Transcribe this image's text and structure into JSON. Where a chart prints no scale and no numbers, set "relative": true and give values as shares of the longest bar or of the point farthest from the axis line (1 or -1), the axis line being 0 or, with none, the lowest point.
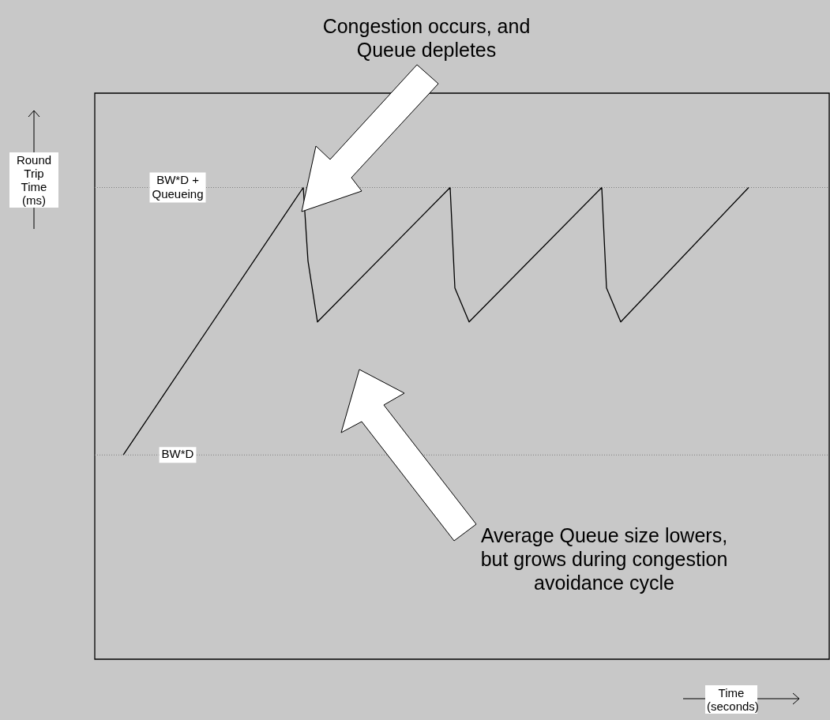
{
  "chart_data": {
    "type": "line",
    "relative": true,
    "xlabel": "Time (seconds)",
    "ylabel": "Round Trip Time (ms)",
    "categories": [
      null,
      null,
      null,
      null,
      null,
      null,
      null,
      null,
      null,
      null,
      null,
      null,
      null,
      null,
      null,
      null,
      null,
      null,
      null,
      null,
      null,
      null,
      null,
      null,
      null,
      null,
      null,
      null,
      null,
      null,
      null,
      null,
      null,
      null,
      null,
      null,
      null,
      null,
      null,
      null,
      null,
      null,
      null,
      null,
      null,
      null,
      null,
      null,
      null,
      null,
      null,
      null,
      null,
      null,
      null,
      null,
      null,
      null,
      null,
      null,
      null,
      null,
      null,
      null,
      null,
      null,
      null,
      null,
      null,
      null,
      null,
      null,
      null,
      null,
      null,
      null,
      null,
      null,
      null,
      null,
      null,
      null,
      null,
      null,
      null,
      null,
      null,
      null,
      null,
      null,
      null,
      null,
      null,
      null,
      null,
      null,
      null,
      null,
      null,
      null,
      null,
      null,
      null,
      null,
      null,
      null,
      null,
      null,
      null,
      null,
      null,
      null,
      null,
      null,
      null,
      null,
      null,
      null,
      null,
      null,
      null,
      null,
      null,
      null,
      null,
      null,
      null,
      null,
      null,
      null,
      null,
      null,
      null,
      null,
      null,
      null,
      null,
      null,
      null,
      null,
      null,
      null,
      null,
      null,
      null,
      null,
      null,
      null,
      null,
      null,
      null,
      null,
      null,
      null,
      null,
      null
    ],
    "series": [
      {
        "color": "#000000",
        "values": [
          null,
          null,
          null,
          null,
          null,
          null,
          0.433,
          null,
          null,
          null,
          null,
          null,
          null,
          null,
          null,
          null,
          null,
          null,
          null,
          null,
          null,
          null,
          null,
          null,
          null,
          null,
          null,
          null,
          null,
          null,
          null,
          null,
          null,
          null,
          null,
          null,
          null,
          null,
          null,
          null,
          null,
          null,
          null,
          null,
          1,
          0.844,
          null,
          0.715,
          null,
          null,
          null,
          null,
          null,
          null,
          null,
          null,
          null,
          null,
          null,
          null,
          null,
          null,
          null,
          null,
          null,
          null,
          null,
          null,
          null,
          null,
          null,
          null,
          null,
          null,
          null,
          1,
          0.787,
          null,
          null,
          0.715,
          null,
          null,
          null,
          null,
          null,
          null,
          null,
          null,
          null,
          null,
          null,
          null,
          null,
          null,
          null,
          null,
          null,
          null,
          null,
          null,
          null,
          null,
          null,
          null,
          null,
          null,
          null,
          1,
          0.787,
          null,
          null,
          0.715,
          null,
          null,
          null,
          null,
          null,
          null,
          null,
          null,
          null,
          null,
          null,
          null,
          null,
          null,
          null,
          null,
          null,
          null,
          null,
          null,
          null,
          null,
          null,
          null,
          null,
          null,
          1,
          null,
          null,
          null,
          null,
          null,
          null,
          null,
          null,
          null,
          null,
          null,
          null,
          null,
          null,
          null,
          null,
          null
        ]
      }
    ],
    "tick_labels": false,
    "legend": false,
    "marker": "none",
    "line_style": "solid",
    "ref_lines": [
      {
        "axis": "y",
        "value": 1,
        "label": "BW*D + Queueing",
        "color": "#808080",
        "line_style": "dotted"
      },
      {
        "axis": "y",
        "value": 0.433,
        "label": "BW*D",
        "color": "#808080",
        "line_style": "dotted"
      }
    ],
    "annotations": [
      "Congestion occurs, and Queue depletes",
      "Average Queue size lowers, but grows during congestion avoidance cycle"
    ]
  }
}
